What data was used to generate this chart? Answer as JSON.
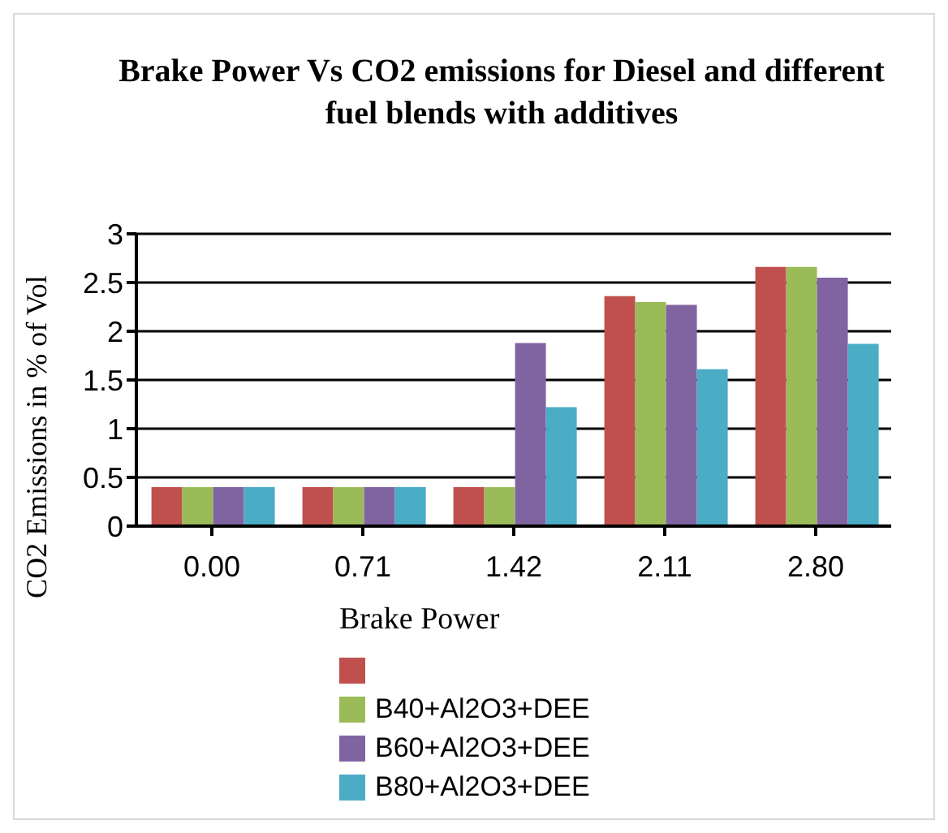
{
  "chart_data": {
    "type": "bar",
    "title": "Brake Power Vs CO2 emissions for Diesel and different fuel blends with additives",
    "xlabel": "Brake Power",
    "ylabel": "CO2  Emissions in % of Vol",
    "categories": [
      "0.00",
      "0.71",
      "1.42",
      "2.11",
      "2.80"
    ],
    "series": [
      {
        "color": "#c0504d",
        "values": [
          0.4,
          0.4,
          0.4,
          2.36,
          2.66
        ]
      },
      {
        "name": "B40+Al2O3+DEE",
        "color": "#9bbb59",
        "values": [
          0.4,
          0.4,
          0.4,
          2.3,
          2.66
        ]
      },
      {
        "name": "B60+Al2O3+DEE",
        "color": "#8064a2",
        "values": [
          0.4,
          0.4,
          1.88,
          2.27,
          2.55
        ]
      },
      {
        "name": "B80+Al2O3+DEE",
        "color": "#4bacc6",
        "values": [
          0.4,
          0.4,
          1.22,
          1.61,
          1.87
        ]
      }
    ],
    "ylim": [
      0,
      3
    ],
    "yticks": [
      0,
      0.5,
      1,
      1.5,
      2,
      2.5,
      3
    ],
    "grid": "y",
    "legend": "bottom"
  }
}
